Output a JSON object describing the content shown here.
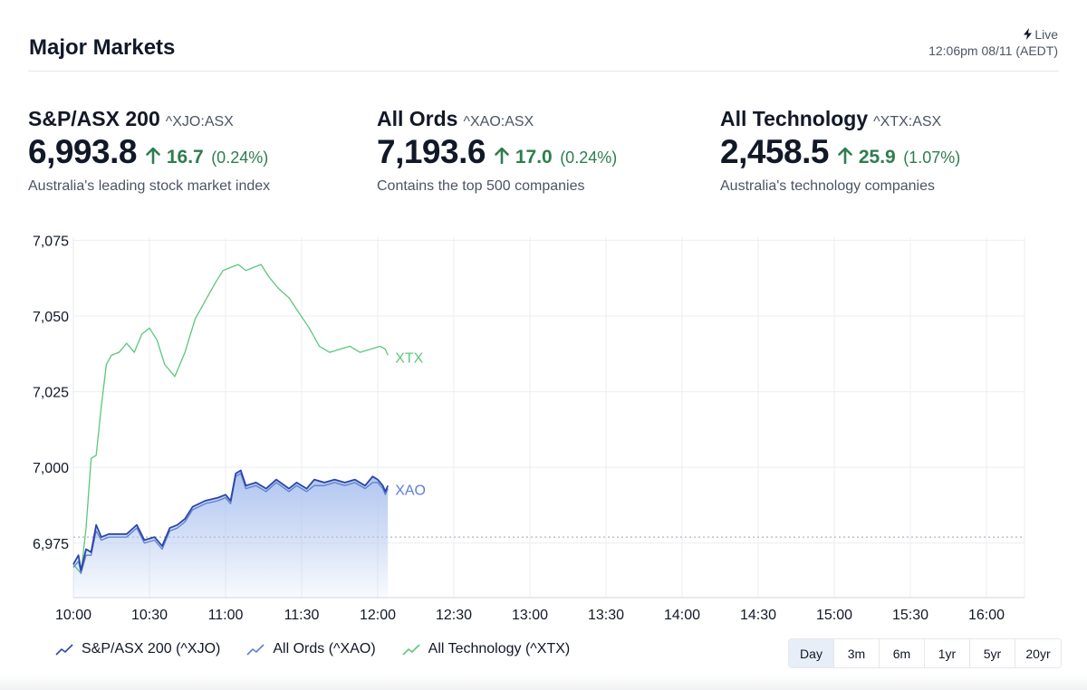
{
  "header": {
    "title": "Major Markets",
    "live_label": "Live",
    "timestamp": "12:06pm 08/11 (AEDT)"
  },
  "indices": [
    {
      "name": "S&P/ASX 200",
      "code": "^XJO:ASX",
      "value": "6,993.8",
      "change": "16.7",
      "pct": "(0.24%)",
      "desc": "Australia's leading stock market index"
    },
    {
      "name": "All Ords",
      "code": "^XAO:ASX",
      "value": "7,193.6",
      "change": "17.0",
      "pct": "(0.24%)",
      "desc": "Contains the top 500 companies"
    },
    {
      "name": "All Technology",
      "code": "^XTX:ASX",
      "value": "2,458.5",
      "change": "25.9",
      "pct": "(1.07%)",
      "desc": "Australia's technology companies"
    }
  ],
  "legend": [
    "S&P/ASX 200 (^XJO)",
    "All Ords (^XAO)",
    "All Technology (^XTX)"
  ],
  "periods": [
    "Day",
    "3m",
    "6m",
    "1yr",
    "5yr",
    "20yr"
  ],
  "active_period": "Day",
  "colors": {
    "xjo": "#2b46a6",
    "xao": "#5b7fd6",
    "xtx": "#5cc77a",
    "up": "#2f7d4f",
    "fill_top": "#a9c0ee"
  },
  "chart_data": {
    "type": "line",
    "ylim": [
      6957,
      7076
    ],
    "yticks": [
      6975,
      7000,
      7025,
      7050,
      7075
    ],
    "ytick_labels": [
      "6,975",
      "7,000",
      "7,025",
      "7,050",
      "7,075"
    ],
    "xlim": [
      "10:00",
      "16:15"
    ],
    "xticks": [
      "10:00",
      "10:30",
      "11:00",
      "11:30",
      "12:00",
      "12:30",
      "13:00",
      "13:30",
      "14:00",
      "14:30",
      "15:00",
      "15:30",
      "16:00"
    ],
    "reference_line": 6977,
    "series": [
      {
        "name": "S&P/ASX 200 (^XJO)",
        "x": [
          "10:00",
          "10:02",
          "10:03",
          "10:05",
          "10:07",
          "10:09",
          "10:11",
          "10:14",
          "10:17",
          "10:21",
          "10:25",
          "10:28",
          "10:32",
          "10:35",
          "10:38",
          "10:41",
          "10:44",
          "10:47",
          "10:52",
          "10:57",
          "11:00",
          "11:02",
          "11:04",
          "11:06",
          "11:08",
          "11:12",
          "11:16",
          "11:20",
          "11:25",
          "11:28",
          "11:32",
          "11:35",
          "11:39",
          "11:43",
          "11:47",
          "11:51",
          "11:55",
          "11:58",
          "12:00",
          "12:02",
          "12:03",
          "12:04"
        ],
        "y": [
          6968,
          6971,
          6966,
          6973,
          6972,
          6981,
          6977,
          6978,
          6978,
          6978,
          6981,
          6976,
          6977,
          6974,
          6980,
          6981,
          6983,
          6987,
          6989,
          6990,
          6991,
          6989,
          6998,
          6999,
          6994,
          6995,
          6993,
          6996,
          6993,
          6995,
          6993,
          6996,
          6995,
          6996,
          6995,
          6996,
          6994,
          6997,
          6996,
          6994,
          6992,
          6994
        ]
      },
      {
        "name": "All Ords (^XAO)",
        "x": [
          "10:00",
          "10:02",
          "10:03",
          "10:05",
          "10:07",
          "10:09",
          "10:11",
          "10:14",
          "10:17",
          "10:21",
          "10:25",
          "10:28",
          "10:32",
          "10:35",
          "10:38",
          "10:41",
          "10:44",
          "10:47",
          "10:52",
          "10:57",
          "11:00",
          "11:02",
          "11:04",
          "11:06",
          "11:08",
          "11:12",
          "11:16",
          "11:20",
          "11:25",
          "11:28",
          "11:32",
          "11:35",
          "11:39",
          "11:43",
          "11:47",
          "11:51",
          "11:55",
          "11:58",
          "12:00",
          "12:02",
          "12:03",
          "12:04"
        ],
        "y": [
          6967,
          6969,
          6965,
          6971,
          6971,
          6979,
          6976,
          6977,
          6977,
          6977,
          6980,
          6975,
          6976,
          6973,
          6979,
          6980,
          6982,
          6986,
          6988,
          6989,
          6990,
          6988,
          6997,
          6998,
          6993,
          6994,
          6992,
          6995,
          6992,
          6994,
          6992,
          6994,
          6994,
          6995,
          6994,
          6995,
          6993,
          6995,
          6995,
          6993,
          6991,
          6993
        ]
      },
      {
        "name": "All Technology (^XTX)",
        "x": [
          "10:00",
          "10:02",
          "10:03",
          "10:05",
          "10:07",
          "10:09",
          "10:11",
          "10:13",
          "10:15",
          "10:18",
          "10:21",
          "10:24",
          "10:27",
          "10:30",
          "10:33",
          "10:36",
          "10:40",
          "10:44",
          "10:48",
          "10:52",
          "10:56",
          "10:59",
          "11:02",
          "11:05",
          "11:08",
          "11:11",
          "11:14",
          "11:17",
          "11:21",
          "11:25",
          "11:29",
          "11:33",
          "11:37",
          "11:41",
          "11:45",
          "11:49",
          "11:53",
          "11:57",
          "12:01",
          "12:03",
          "12:04"
        ],
        "y": [
          6968,
          6966,
          6965,
          6980,
          7003,
          7004,
          7020,
          7034,
          7037,
          7038,
          7041,
          7038,
          7044,
          7046,
          7042,
          7034,
          7030,
          7038,
          7049,
          7055,
          7061,
          7065,
          7066,
          7067,
          7065,
          7066,
          7067,
          7063,
          7059,
          7056,
          7051,
          7046,
          7040,
          7038,
          7039,
          7040,
          7038,
          7039,
          7040,
          7039,
          7037
        ]
      }
    ],
    "end_labels": [
      "XTX",
      "XAO"
    ]
  }
}
